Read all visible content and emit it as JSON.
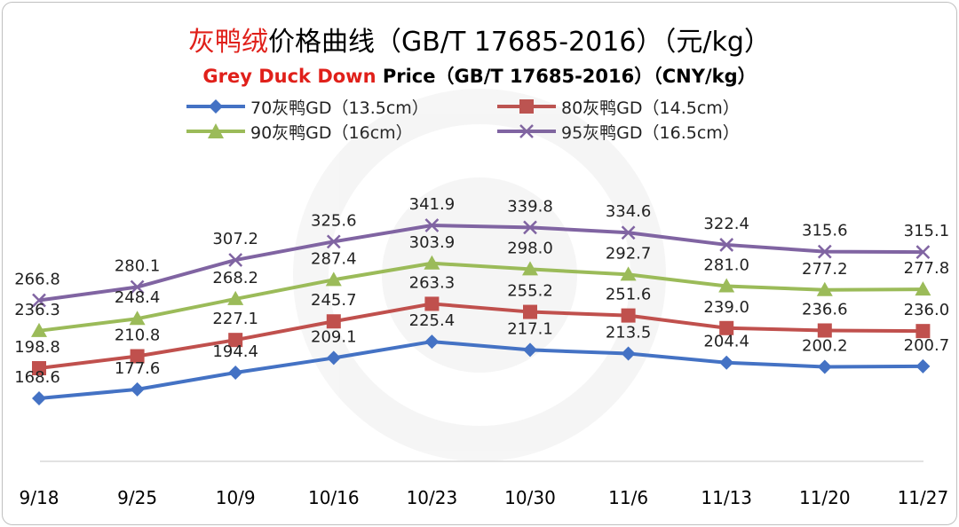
{
  "chart_data": {
    "type": "line",
    "title_cn_red": "灰鸭绒",
    "title_cn_rest": "价格曲线（GB/T 17685-2016）（元/kg）",
    "title_en_red": "Grey Duck Down",
    "title_en_rest": " Price（GB/T 17685-2016）（CNY/kg）",
    "categories": [
      "9/18",
      "9/25",
      "10/9",
      "10/16",
      "10/23",
      "10/30",
      "11/6",
      "11/13",
      "11/20",
      "11/27"
    ],
    "series": [
      {
        "name": "70灰鸭GD（13.5cm）",
        "color": "#4472c4",
        "marker": "diamond",
        "values": [
          168.6,
          177.6,
          194.4,
          209.1,
          225.4,
          217.1,
          213.5,
          204.4,
          200.2,
          200.7
        ]
      },
      {
        "name": "80灰鸭GD（14.5cm）",
        "color": "#c0504d",
        "marker": "square",
        "values": [
          198.8,
          210.8,
          227.1,
          245.7,
          263.3,
          255.2,
          251.6,
          239.0,
          236.6,
          236.0
        ]
      },
      {
        "name": "90灰鸭GD（16cm）",
        "color": "#9bbb59",
        "marker": "triangle",
        "values": [
          236.3,
          248.4,
          268.2,
          287.4,
          303.9,
          298.0,
          292.7,
          281.0,
          277.2,
          277.8
        ]
      },
      {
        "name": "95灰鸭GD（16.5cm）",
        "color": "#8064a2",
        "marker": "x",
        "values": [
          266.8,
          280.1,
          307.2,
          325.6,
          341.9,
          339.8,
          334.6,
          322.4,
          315.6,
          315.1
        ]
      }
    ],
    "legend_position": "top",
    "grid": false
  }
}
